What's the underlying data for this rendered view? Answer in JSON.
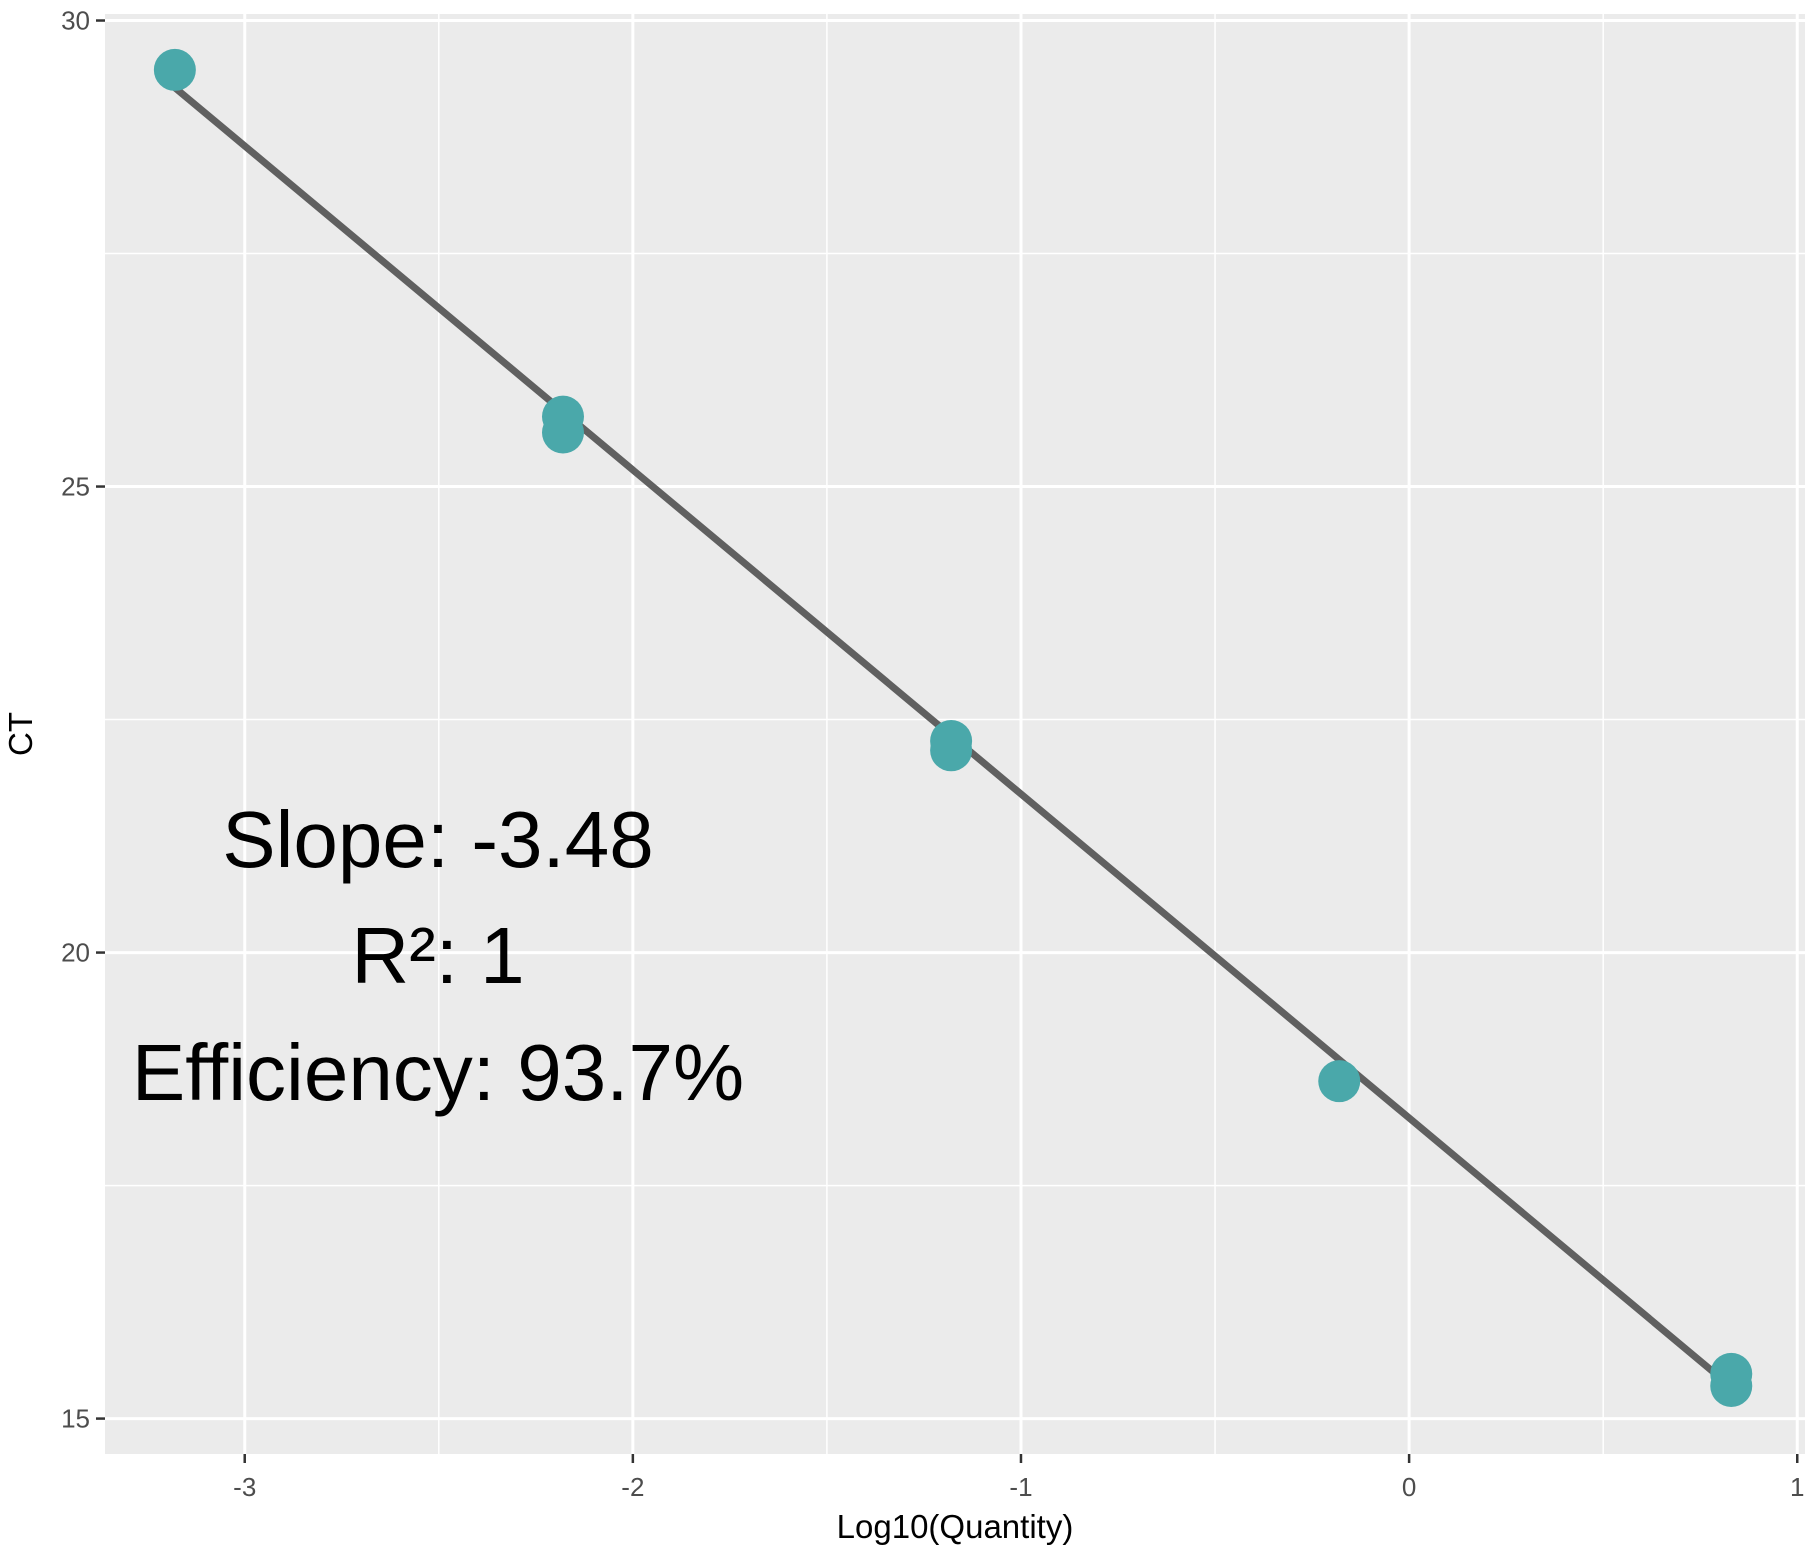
{
  "chart_data": {
    "type": "scatter",
    "title": "",
    "xlabel": "Log10(Quantity)",
    "ylabel": "CT",
    "xlim": [
      -3.36,
      1.02
    ],
    "ylim": [
      14.62,
      30.07
    ],
    "x_ticks": [
      -3,
      -2,
      -1,
      0,
      1
    ],
    "y_ticks": [
      15,
      20,
      25,
      30
    ],
    "grid": true,
    "legend": "none",
    "colors": {
      "panel": "#ebebeb",
      "grid": "#ffffff",
      "points": "#4aa8aa",
      "fit_line": "#606060"
    },
    "points": [
      {
        "x": -3.18,
        "y": 29.47
      },
      {
        "x": -2.18,
        "y": 25.75
      },
      {
        "x": -2.18,
        "y": 25.58
      },
      {
        "x": -1.18,
        "y": 22.27
      },
      {
        "x": -1.18,
        "y": 22.17
      },
      {
        "x": -0.18,
        "y": 18.62
      },
      {
        "x": 0.83,
        "y": 15.48
      },
      {
        "x": 0.83,
        "y": 15.35
      }
    ],
    "fit_line": {
      "x": [
        -3.18,
        0.83
      ],
      "y": [
        29.28,
        15.34
      ]
    },
    "annotations": [
      "Slope: -3.48",
      "R²: 1",
      "Efficiency: 93.7%"
    ]
  }
}
